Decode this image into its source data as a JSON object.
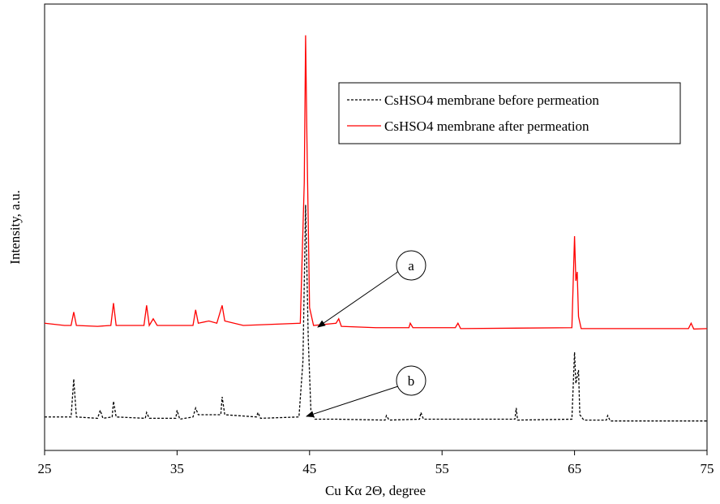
{
  "chart_data": {
    "type": "line",
    "x_label": "Cu Kα 2Θ, degree",
    "y_label": "Intensity, a.u.",
    "xlim": [
      25,
      75
    ],
    "xticks": [
      25,
      35,
      45,
      55,
      65,
      75
    ],
    "ylim": [
      0,
      100
    ],
    "legend": "top-right",
    "series": [
      {
        "name": "CsHSO4 membrane before permeation",
        "color": "#000000",
        "dashed": true,
        "x": [
          25,
          27,
          27.2,
          27.4,
          29,
          29.2,
          29.4,
          30.1,
          30.2,
          30.4,
          32.6,
          32.7,
          32.9,
          34.9,
          35,
          35.2,
          36.2,
          36.4,
          36.6,
          38.3,
          38.4,
          38.6,
          41,
          41.1,
          41.3,
          44.2,
          44.5,
          44.7,
          44.9,
          45.1,
          45.4,
          47,
          50.7,
          50.8,
          51,
          53.3,
          53.4,
          53.6,
          60.5,
          60.6,
          60.7,
          64.8,
          65,
          65.1,
          65.3,
          65.4,
          65.7,
          67.4,
          67.5,
          67.7,
          75
        ],
        "values": [
          7.5,
          7.5,
          16,
          7.5,
          7.2,
          9,
          7.2,
          7.5,
          11,
          7.5,
          7.2,
          8.5,
          7.2,
          7.2,
          9,
          7,
          7.5,
          9.5,
          8,
          8,
          12,
          8,
          7.5,
          8.5,
          7.2,
          7.5,
          20,
          55,
          25,
          9,
          7,
          7,
          6.8,
          7.8,
          6.8,
          7,
          8.5,
          7,
          7,
          9.5,
          6.8,
          7,
          22,
          15,
          18,
          8,
          6.8,
          6.8,
          7.8,
          6.6,
          6.6
        ]
      },
      {
        "name": "CsHSO4 membrane after permeation",
        "color": "#ff0000",
        "dashed": false,
        "x": [
          25,
          26.5,
          27,
          27.2,
          27.4,
          29,
          30,
          30.2,
          30.4,
          32.5,
          32.7,
          32.9,
          33.2,
          33.5,
          36.2,
          36.4,
          36.6,
          37.4,
          38,
          38.4,
          38.6,
          40,
          44.3,
          44.6,
          44.7,
          44.8,
          45,
          45.3,
          47,
          47.2,
          47.4,
          50,
          52.5,
          52.6,
          52.8,
          56,
          56.2,
          56.4,
          64.8,
          65,
          65.1,
          65.2,
          65.3,
          65.5,
          73.6,
          73.8,
          74,
          75
        ],
        "values": [
          28.5,
          28,
          28,
          31,
          28,
          27.8,
          28,
          33,
          28,
          28,
          32.5,
          28,
          29.5,
          28,
          28,
          31.5,
          28.5,
          29,
          28.5,
          32.5,
          29,
          28,
          28.5,
          60,
          93,
          70,
          32,
          28,
          28.5,
          29.5,
          27.8,
          27.5,
          27.5,
          28.5,
          27.5,
          27.5,
          28.5,
          27.3,
          27.5,
          48,
          38,
          40,
          30,
          27.3,
          27.3,
          28.5,
          27.2,
          27.3
        ]
      }
    ],
    "annotations": [
      {
        "text": "a"
      },
      {
        "text": "b"
      }
    ]
  }
}
